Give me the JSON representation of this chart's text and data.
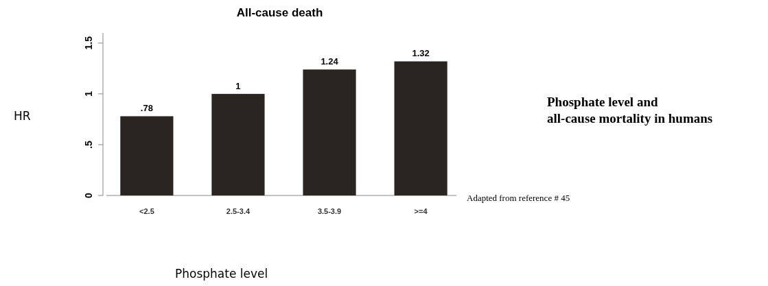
{
  "chart_data": {
    "type": "bar",
    "title": "All-cause death",
    "xlabel": "Phosphate level",
    "ylabel": "HR",
    "categories": [
      "<2.5",
      "2.5-3.4",
      "3.5-3.9",
      ">=4"
    ],
    "values": [
      0.78,
      1,
      1.24,
      1.32
    ],
    "color": "#2b2522",
    "value_labels": [
      ".78",
      "1",
      "1.24",
      "1.32"
    ],
    "ylim": [
      0,
      1.6
    ],
    "yticks": [
      0,
      {
        "value": 0.5,
        "label": ".5"
      },
      1,
      1.5
    ],
    "annotations": [
      "Phosphate level and\nall-cause mortality in humans",
      "Adapted from reference # 45"
    ]
  }
}
